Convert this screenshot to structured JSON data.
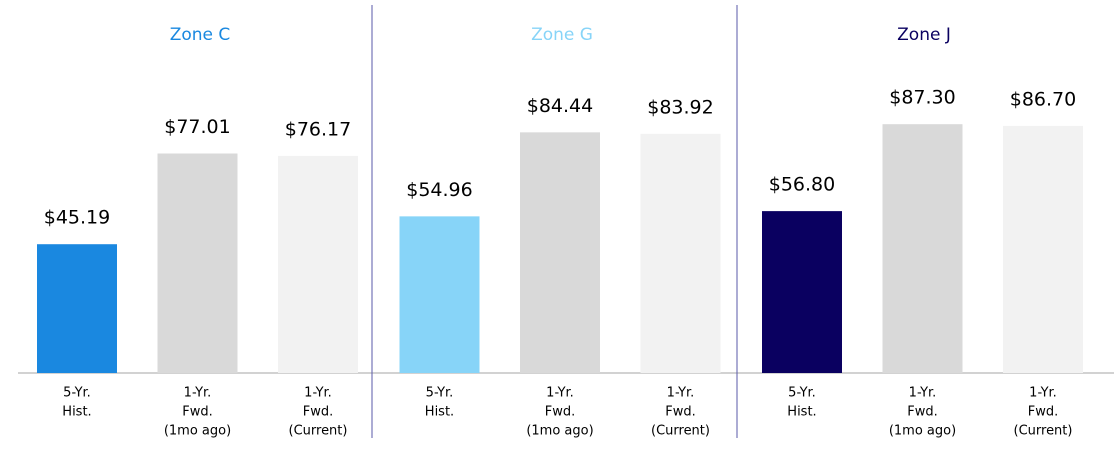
{
  "chart_data": [
    {
      "type": "bar",
      "title": "Zone C",
      "title_color": "#1a88e0",
      "categories": [
        [
          "5-Yr.",
          "Hist."
        ],
        [
          "1-Yr.",
          "Fwd.",
          "(1mo ago)"
        ],
        [
          "1-Yr.",
          "Fwd.",
          "(Current)"
        ]
      ],
      "values": [
        45.19,
        77.01,
        76.17
      ],
      "value_labels": [
        "$45.19",
        "$77.01",
        "$76.17"
      ],
      "colors": [
        "#1a88e0",
        "#d9d9d9",
        "#f2f2f2"
      ],
      "ylim": [
        0,
        100
      ]
    },
    {
      "type": "bar",
      "title": "Zone G",
      "title_color": "#87d4f8",
      "categories": [
        [
          "5-Yr.",
          "Hist."
        ],
        [
          "1-Yr.",
          "Fwd.",
          "(1mo ago)"
        ],
        [
          "1-Yr.",
          "Fwd.",
          "(Current)"
        ]
      ],
      "values": [
        54.96,
        84.44,
        83.92
      ],
      "value_labels": [
        "$54.96",
        "$84.44",
        "$83.92"
      ],
      "colors": [
        "#87d4f8",
        "#d9d9d9",
        "#f2f2f2"
      ],
      "ylim": [
        0,
        100
      ]
    },
    {
      "type": "bar",
      "title": "Zone J",
      "title_color": "#0a0060",
      "categories": [
        [
          "5-Yr.",
          "Hist."
        ],
        [
          "1-Yr.",
          "Fwd.",
          "(1mo ago)"
        ],
        [
          "1-Yr.",
          "Fwd.",
          "(Current)"
        ]
      ],
      "values": [
        56.8,
        87.3,
        86.7
      ],
      "value_labels": [
        "$56.80",
        "$87.30",
        "$86.70"
      ],
      "colors": [
        "#0a0060",
        "#d9d9d9",
        "#f2f2f2"
      ],
      "ylim": [
        0,
        100
      ]
    }
  ]
}
